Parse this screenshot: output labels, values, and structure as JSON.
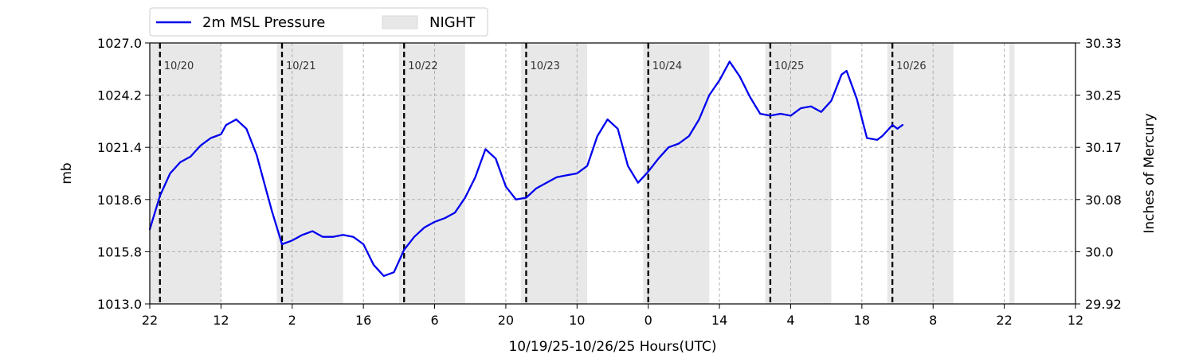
{
  "chart_data": {
    "type": "line",
    "xlabel": "10/19/25-10/26/25  Hours(UTC)",
    "ylabel_left": "mb",
    "ylabel_right": "Inches of Mercury",
    "x_axis_start": "2025-10-19T22:00Z",
    "x_axis_end": "2025-10-27T12:00Z",
    "ylim": [
      1013.0,
      1027.0
    ],
    "yticks_left": [
      "1013.0",
      "1015.8",
      "1018.6",
      "1021.4",
      "1024.2",
      "1027.0"
    ],
    "yticks_right": [
      "29.92",
      "30.0",
      "30.08",
      "30.17",
      "30.25",
      "30.33"
    ],
    "xticks": [
      "22",
      "12",
      "2",
      "16",
      "6",
      "20",
      "10",
      "0",
      "14",
      "4",
      "18",
      "8",
      "22",
      "12"
    ],
    "grid": true,
    "legend_position": "top-left",
    "legend": [
      "2m MSL Pressure",
      "NIGHT"
    ],
    "day_labels": [
      "10/20",
      "10/21",
      "10/22",
      "10/23",
      "10/24",
      "10/25",
      "10/26"
    ],
    "day_boundaries": [
      "2025-10-20T00:00Z",
      "2025-10-21T00:00Z",
      "2025-10-22T00:00Z",
      "2025-10-23T00:00Z",
      "2025-10-24T00:00Z",
      "2025-10-25T00:00Z",
      "2025-10-26T00:00Z"
    ],
    "night_periods": [
      [
        "2025-10-19T22:00Z",
        "2025-10-20T12:00Z"
      ],
      [
        "2025-10-20T23:00Z",
        "2025-10-21T12:00Z"
      ],
      [
        "2025-10-21T23:00Z",
        "2025-10-22T12:00Z"
      ],
      [
        "2025-10-22T23:00Z",
        "2025-10-23T12:00Z"
      ],
      [
        "2025-10-23T23:00Z",
        "2025-10-24T12:00Z"
      ],
      [
        "2025-10-24T23:00Z",
        "2025-10-25T12:00Z"
      ],
      [
        "2025-10-25T23:00Z",
        "2025-10-26T12:00Z"
      ],
      [
        "2025-10-26T23:00Z",
        "2025-10-27T00:00Z"
      ]
    ],
    "series": [
      {
        "name": "2m MSL Pressure",
        "color": "#0000ee",
        "x": [
          "2025-10-19T22:00Z",
          "2025-10-20T00:00Z",
          "2025-10-20T02:00Z",
          "2025-10-20T04:00Z",
          "2025-10-20T06:00Z",
          "2025-10-20T08:00Z",
          "2025-10-20T10:00Z",
          "2025-10-20T12:00Z",
          "2025-10-20T13:00Z",
          "2025-10-20T15:00Z",
          "2025-10-20T17:00Z",
          "2025-10-20T19:00Z",
          "2025-10-20T21:00Z",
          "2025-10-20T22:00Z",
          "2025-10-21T00:00Z",
          "2025-10-21T02:00Z",
          "2025-10-21T04:00Z",
          "2025-10-21T06:00Z",
          "2025-10-21T08:00Z",
          "2025-10-21T10:00Z",
          "2025-10-21T12:00Z",
          "2025-10-21T14:00Z",
          "2025-10-21T16:00Z",
          "2025-10-21T18:00Z",
          "2025-10-21T20:00Z",
          "2025-10-21T22:00Z",
          "2025-10-22T00:00Z",
          "2025-10-22T02:00Z",
          "2025-10-22T04:00Z",
          "2025-10-22T06:00Z",
          "2025-10-22T08:00Z",
          "2025-10-22T10:00Z",
          "2025-10-22T12:00Z",
          "2025-10-22T14:00Z",
          "2025-10-22T16:00Z",
          "2025-10-22T18:00Z",
          "2025-10-22T20:00Z",
          "2025-10-22T22:00Z",
          "2025-10-23T00:00Z",
          "2025-10-23T02:00Z",
          "2025-10-23T04:00Z",
          "2025-10-23T06:00Z",
          "2025-10-23T08:00Z",
          "2025-10-23T10:00Z",
          "2025-10-23T12:00Z",
          "2025-10-23T14:00Z",
          "2025-10-23T16:00Z",
          "2025-10-23T18:00Z",
          "2025-10-23T20:00Z",
          "2025-10-23T22:00Z",
          "2025-10-24T00:00Z",
          "2025-10-24T02:00Z",
          "2025-10-24T04:00Z",
          "2025-10-24T06:00Z",
          "2025-10-24T08:00Z",
          "2025-10-24T10:00Z",
          "2025-10-24T12:00Z",
          "2025-10-24T14:00Z",
          "2025-10-24T16:00Z",
          "2025-10-24T18:00Z",
          "2025-10-24T20:00Z",
          "2025-10-24T22:00Z",
          "2025-10-25T00:00Z",
          "2025-10-25T02:00Z",
          "2025-10-25T04:00Z",
          "2025-10-25T06:00Z",
          "2025-10-25T08:00Z",
          "2025-10-25T10:00Z",
          "2025-10-25T12:00Z",
          "2025-10-25T14:00Z",
          "2025-10-25T15:00Z",
          "2025-10-25T17:00Z",
          "2025-10-25T19:00Z",
          "2025-10-25T21:00Z",
          "2025-10-25T22:00Z",
          "2025-10-26T00:00Z",
          "2025-10-26T01:00Z",
          "2025-10-26T02:00Z"
        ],
        "y": [
          1017.0,
          1018.8,
          1020.0,
          1020.6,
          1020.9,
          1021.5,
          1021.9,
          1022.1,
          1022.6,
          1022.9,
          1022.4,
          1021.0,
          1019.0,
          1018.0,
          1016.2,
          1016.4,
          1016.7,
          1016.9,
          1016.6,
          1016.6,
          1016.7,
          1016.6,
          1016.2,
          1015.1,
          1014.5,
          1014.7,
          1015.9,
          1016.6,
          1017.1,
          1017.4,
          1017.6,
          1017.9,
          1018.7,
          1019.8,
          1021.3,
          1020.8,
          1019.3,
          1018.6,
          1018.7,
          1019.2,
          1019.5,
          1019.8,
          1019.9,
          1020.0,
          1020.4,
          1022.0,
          1022.9,
          1022.4,
          1020.4,
          1019.5,
          1020.1,
          1020.8,
          1021.4,
          1021.6,
          1022.0,
          1022.9,
          1024.2,
          1025.0,
          1026.0,
          1025.2,
          1024.1,
          1023.2,
          1023.1,
          1023.2,
          1023.1,
          1023.5,
          1023.6,
          1023.3,
          1023.9,
          1025.3,
          1025.5,
          1024.0,
          1021.9,
          1021.8,
          1022.0,
          1022.6,
          1022.4,
          1022.6
        ]
      }
    ]
  }
}
